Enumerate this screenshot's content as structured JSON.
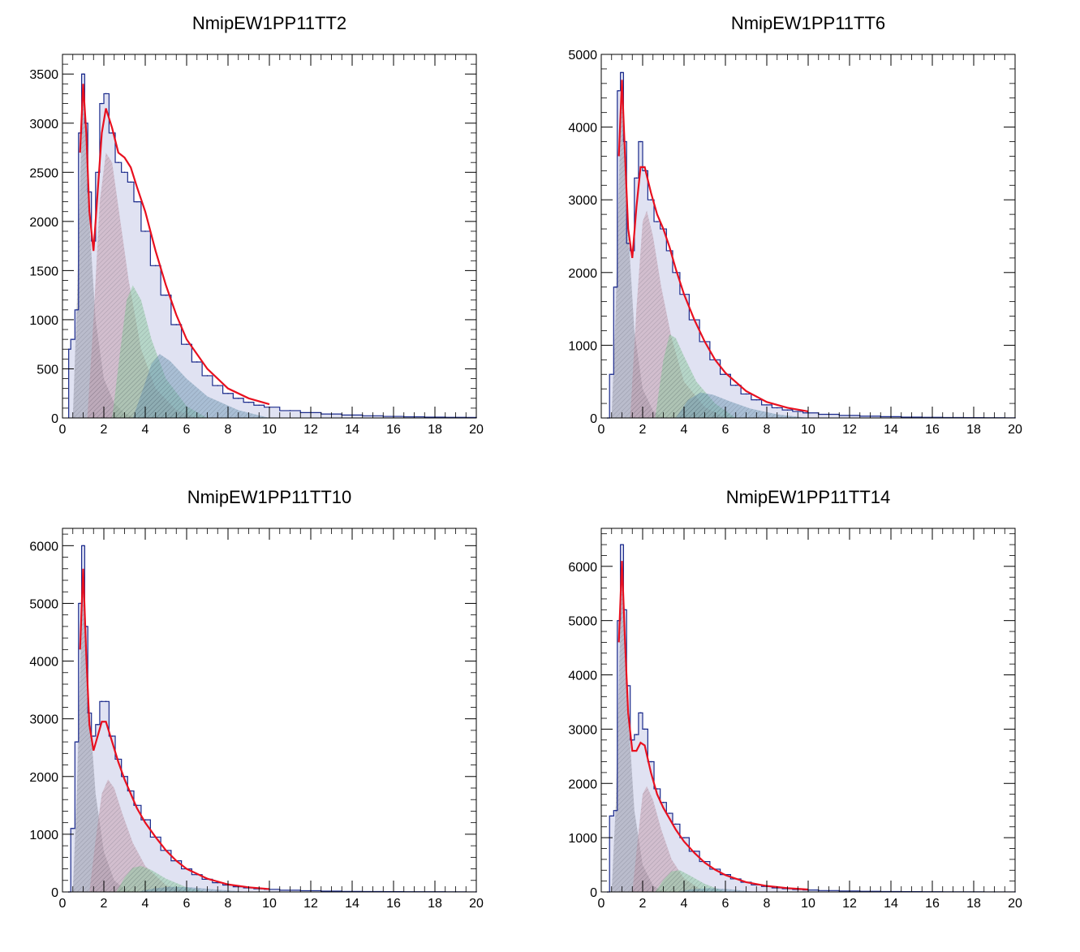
{
  "chart_data": [
    {
      "type": "histogram",
      "title": "NmipEW1PP11TT2",
      "xlabel": "",
      "ylabel": "",
      "xlim": [
        0,
        20
      ],
      "ylim": [
        0,
        3700
      ],
      "xticks": [
        "0",
        "2",
        "4",
        "6",
        "8",
        "10",
        "12",
        "14",
        "16",
        "18",
        "20"
      ],
      "yticks": [
        0,
        500,
        1000,
        1500,
        2000,
        2500,
        3000,
        3500
      ],
      "ytick_labels": [
        "0",
        "500",
        "1000",
        "1500",
        "2000",
        "2500",
        "3000",
        "3500"
      ],
      "histogram": {
        "x": [
          0.3,
          0.5,
          0.7,
          0.85,
          1.0,
          1.15,
          1.3,
          1.5,
          1.7,
          1.9,
          2.1,
          2.4,
          2.7,
          3.0,
          3.3,
          3.6,
          4.0,
          4.5,
          5.0,
          5.5,
          6.0,
          6.5,
          7.0,
          7.5,
          8.0,
          8.5,
          9.0,
          9.5,
          10.0,
          11.0,
          12.0,
          13.0,
          14.0,
          15.0,
          16.0,
          17.0,
          18.0,
          19.0,
          20.0
        ],
        "y": [
          700,
          800,
          1100,
          2900,
          3500,
          3000,
          2300,
          1800,
          2500,
          3200,
          3300,
          2900,
          2600,
          2500,
          2400,
          2200,
          1900,
          1550,
          1250,
          950,
          750,
          570,
          430,
          330,
          250,
          200,
          160,
          130,
          110,
          75,
          55,
          40,
          30,
          22,
          16,
          12,
          8,
          6,
          5
        ]
      },
      "fit": {
        "x": [
          0.85,
          1.0,
          1.15,
          1.3,
          1.5,
          1.7,
          1.9,
          2.1,
          2.4,
          2.7,
          3.0,
          3.3,
          3.6,
          4.0,
          4.5,
          5.0,
          5.5,
          6.0,
          7.0,
          8.0,
          9.0,
          10.0
        ],
        "y": [
          2700,
          3400,
          2900,
          2100,
          1700,
          2300,
          2900,
          3150,
          2950,
          2700,
          2650,
          2550,
          2350,
          2100,
          1700,
          1350,
          1050,
          800,
          500,
          300,
          200,
          140
        ]
      },
      "components": [
        {
          "color": "#9a9a9a",
          "x": [
            0.5,
            0.7,
            0.9,
            1.0,
            1.1,
            1.3,
            1.6,
            2.0,
            2.5,
            3.0,
            3.5
          ],
          "y": [
            0,
            1200,
            2800,
            3350,
            3000,
            2000,
            1000,
            400,
            150,
            50,
            0
          ]
        },
        {
          "color": "#d9a0a0",
          "x": [
            1.2,
            1.5,
            1.8,
            2.1,
            2.4,
            2.8,
            3.2,
            3.8,
            4.5,
            5.5,
            6.5
          ],
          "y": [
            0,
            1000,
            2200,
            2700,
            2600,
            2000,
            1400,
            700,
            300,
            80,
            0
          ]
        },
        {
          "color": "#8fe08f",
          "x": [
            2.4,
            2.8,
            3.1,
            3.4,
            3.8,
            4.3,
            5.0,
            6.0,
            7.0
          ],
          "y": [
            0,
            700,
            1200,
            1350,
            1200,
            800,
            400,
            120,
            0
          ]
        },
        {
          "color": "#6b9fb0",
          "x": [
            3.4,
            3.9,
            4.3,
            4.7,
            5.2,
            6.0,
            7.0,
            8.5,
            10.0
          ],
          "y": [
            0,
            300,
            550,
            650,
            580,
            400,
            220,
            80,
            0
          ]
        }
      ]
    },
    {
      "type": "histogram",
      "title": "NmipEW1PP11TT6",
      "xlabel": "",
      "ylabel": "",
      "xlim": [
        0,
        20
      ],
      "ylim": [
        0,
        5000
      ],
      "xticks": [
        "0",
        "2",
        "4",
        "6",
        "8",
        "10",
        "12",
        "14",
        "16",
        "18",
        "20"
      ],
      "yticks": [
        0,
        1000,
        2000,
        3000,
        4000,
        5000
      ],
      "ytick_labels": [
        "0",
        "1000",
        "2000",
        "3000",
        "4000",
        "5000"
      ],
      "histogram": {
        "x": [
          0.3,
          0.5,
          0.7,
          0.85,
          1.0,
          1.15,
          1.3,
          1.5,
          1.7,
          1.9,
          2.1,
          2.4,
          2.7,
          3.0,
          3.3,
          3.6,
          4.0,
          4.5,
          5.0,
          5.5,
          6.0,
          6.5,
          7.0,
          7.5,
          8.0,
          8.5,
          9.0,
          9.5,
          10.0,
          11.0,
          12.0,
          13.0,
          14.0,
          15.0,
          16.0,
          17.0,
          18.0,
          19.0,
          20.0
        ],
        "y": [
          0,
          600,
          1800,
          4500,
          4750,
          3800,
          2400,
          2300,
          3300,
          3800,
          3400,
          3000,
          2700,
          2600,
          2300,
          2000,
          1700,
          1350,
          1050,
          800,
          600,
          450,
          330,
          250,
          180,
          140,
          110,
          90,
          70,
          50,
          35,
          25,
          18,
          12,
          9,
          6,
          4,
          3,
          2
        ]
      },
      "fit": {
        "x": [
          0.85,
          1.0,
          1.15,
          1.3,
          1.5,
          1.7,
          1.9,
          2.1,
          2.4,
          2.7,
          3.0,
          3.3,
          3.6,
          4.0,
          4.5,
          5.0,
          5.5,
          6.0,
          7.0,
          8.0,
          9.0,
          10.0
        ],
        "y": [
          3600,
          4650,
          3600,
          2600,
          2200,
          2900,
          3450,
          3450,
          3100,
          2800,
          2600,
          2350,
          2050,
          1700,
          1350,
          1050,
          800,
          620,
          370,
          220,
          140,
          90
        ]
      },
      "components": [
        {
          "color": "#9a9a9a",
          "x": [
            0.5,
            0.7,
            0.9,
            1.0,
            1.1,
            1.3,
            1.6,
            2.0,
            2.5,
            3.0
          ],
          "y": [
            0,
            1500,
            3800,
            4500,
            4000,
            2600,
            1200,
            400,
            100,
            0
          ]
        },
        {
          "color": "#d9a0a0",
          "x": [
            1.4,
            1.7,
            2.0,
            2.2,
            2.5,
            2.9,
            3.4,
            4.0,
            5.0,
            6.0
          ],
          "y": [
            0,
            1500,
            2700,
            2850,
            2500,
            1800,
            1100,
            500,
            150,
            0
          ]
        },
        {
          "color": "#8fe08f",
          "x": [
            2.6,
            3.0,
            3.3,
            3.6,
            4.0,
            4.6,
            5.5,
            6.5
          ],
          "y": [
            0,
            800,
            1150,
            1100,
            850,
            500,
            200,
            0
          ]
        },
        {
          "color": "#6b9fb0",
          "x": [
            3.6,
            4.2,
            4.8,
            5.4,
            6.2,
            7.2,
            8.5,
            10.0
          ],
          "y": [
            0,
            250,
            350,
            320,
            230,
            130,
            50,
            0
          ]
        }
      ]
    },
    {
      "type": "histogram",
      "title": "NmipEW1PP11TT10",
      "xlabel": "",
      "ylabel": "",
      "xlim": [
        0,
        20
      ],
      "ylim": [
        0,
        6300
      ],
      "xticks": [
        "0",
        "2",
        "4",
        "6",
        "8",
        "10",
        "12",
        "14",
        "16",
        "18",
        "20"
      ],
      "yticks": [
        0,
        1000,
        2000,
        3000,
        4000,
        5000,
        6000
      ],
      "ytick_labels": [
        "0",
        "1000",
        "2000",
        "3000",
        "4000",
        "5000",
        "6000"
      ],
      "histogram": {
        "x": [
          0.3,
          0.5,
          0.7,
          0.85,
          1.0,
          1.15,
          1.3,
          1.5,
          1.7,
          1.9,
          2.1,
          2.4,
          2.7,
          3.0,
          3.3,
          3.6,
          4.0,
          4.5,
          5.0,
          5.5,
          6.0,
          6.5,
          7.0,
          7.5,
          8.0,
          8.5,
          9.0,
          9.5,
          10.0,
          11.0,
          12.0,
          13.0,
          14.0,
          15.0,
          16.0,
          17.0,
          18.0,
          19.0,
          20.0
        ],
        "y": [
          0,
          1100,
          2600,
          5000,
          6000,
          4600,
          3100,
          2700,
          2900,
          3300,
          3300,
          2700,
          2300,
          2000,
          1750,
          1500,
          1250,
          950,
          720,
          540,
          400,
          300,
          220,
          160,
          120,
          90,
          70,
          55,
          45,
          30,
          22,
          15,
          10,
          7,
          5,
          4,
          3,
          2,
          1
        ]
      },
      "fit": {
        "x": [
          0.85,
          1.0,
          1.15,
          1.3,
          1.5,
          1.7,
          1.9,
          2.1,
          2.4,
          2.7,
          3.0,
          3.3,
          3.6,
          4.0,
          4.5,
          5.0,
          5.5,
          6.0,
          7.0,
          8.0,
          9.0,
          10.0
        ],
        "y": [
          4200,
          5600,
          4100,
          2900,
          2450,
          2700,
          2950,
          2950,
          2600,
          2250,
          1950,
          1700,
          1450,
          1200,
          950,
          720,
          540,
          400,
          230,
          130,
          80,
          50
        ]
      },
      "components": [
        {
          "color": "#9a9a9a",
          "x": [
            0.5,
            0.7,
            0.9,
            1.0,
            1.1,
            1.3,
            1.6,
            2.0,
            2.5,
            3.0,
            3.5
          ],
          "y": [
            0,
            1800,
            4500,
            5300,
            4700,
            3200,
            1700,
            700,
            200,
            50,
            0
          ]
        },
        {
          "color": "#d9a0a0",
          "x": [
            1.3,
            1.6,
            1.9,
            2.2,
            2.5,
            2.9,
            3.4,
            4.0,
            5.0,
            6.0
          ],
          "y": [
            0,
            900,
            1700,
            1950,
            1800,
            1350,
            850,
            450,
            120,
            0
          ]
        },
        {
          "color": "#8fe08f",
          "x": [
            2.6,
            3.0,
            3.4,
            3.8,
            4.3,
            5.0,
            6.0,
            7.0
          ],
          "y": [
            0,
            250,
            420,
            450,
            380,
            230,
            80,
            0
          ]
        },
        {
          "color": "#6b9fb0",
          "x": [
            3.6,
            4.4,
            5.2,
            6.2,
            7.5,
            9.0
          ],
          "y": [
            0,
            60,
            90,
            80,
            40,
            0
          ]
        }
      ]
    },
    {
      "type": "histogram",
      "title": "NmipEW1PP11TT14",
      "xlabel": "",
      "ylabel": "",
      "xlim": [
        0,
        20
      ],
      "ylim": [
        0,
        6700
      ],
      "xticks": [
        "0",
        "2",
        "4",
        "6",
        "8",
        "10",
        "12",
        "14",
        "16",
        "18",
        "20"
      ],
      "yticks": [
        0,
        1000,
        2000,
        3000,
        4000,
        5000,
        6000
      ],
      "ytick_labels": [
        "0",
        "1000",
        "2000",
        "3000",
        "4000",
        "5000",
        "6000"
      ],
      "histogram": {
        "x": [
          0.3,
          0.5,
          0.7,
          0.85,
          1.0,
          1.15,
          1.3,
          1.5,
          1.7,
          1.9,
          2.1,
          2.4,
          2.7,
          3.0,
          3.3,
          3.6,
          4.0,
          4.5,
          5.0,
          5.5,
          6.0,
          6.5,
          7.0,
          7.5,
          8.0,
          8.5,
          9.0,
          9.5,
          10.0,
          11.0,
          12.0,
          13.0,
          14.0,
          15.0,
          16.0,
          17.0,
          18.0,
          19.0,
          20.0
        ],
        "y": [
          0,
          1400,
          1500,
          5000,
          6400,
          5200,
          3800,
          2800,
          2900,
          3300,
          3000,
          2400,
          1900,
          1650,
          1450,
          1250,
          1000,
          750,
          560,
          420,
          320,
          240,
          180,
          130,
          100,
          75,
          60,
          45,
          35,
          25,
          18,
          12,
          8,
          6,
          4,
          3,
          2,
          1,
          1
        ]
      },
      "fit": {
        "x": [
          0.85,
          1.0,
          1.15,
          1.3,
          1.5,
          1.7,
          1.9,
          2.1,
          2.4,
          2.7,
          3.0,
          3.3,
          3.6,
          4.0,
          4.5,
          5.0,
          5.5,
          6.0,
          7.0,
          8.0,
          9.0,
          10.0
        ],
        "y": [
          4600,
          6100,
          4600,
          3300,
          2600,
          2600,
          2750,
          2700,
          2200,
          1800,
          1550,
          1350,
          1150,
          930,
          720,
          540,
          410,
          310,
          180,
          110,
          70,
          45
        ]
      },
      "components": [
        {
          "color": "#9a9a9a",
          "x": [
            0.5,
            0.7,
            0.9,
            1.0,
            1.1,
            1.3,
            1.6,
            2.0,
            2.5,
            3.0
          ],
          "y": [
            0,
            1600,
            4700,
            5700,
            5000,
            3300,
            1500,
            500,
            120,
            0
          ]
        },
        {
          "color": "#d9a0a0",
          "x": [
            1.5,
            1.8,
            2.0,
            2.2,
            2.5,
            2.9,
            3.4,
            4.0,
            5.0
          ],
          "y": [
            0,
            1100,
            1800,
            1950,
            1700,
            1150,
            600,
            250,
            0
          ]
        },
        {
          "color": "#8fe08f",
          "x": [
            2.6,
            3.0,
            3.4,
            3.8,
            4.3,
            5.0,
            6.0
          ],
          "y": [
            0,
            220,
            380,
            400,
            300,
            150,
            0
          ]
        },
        {
          "color": "#6b9fb0",
          "x": [
            3.6,
            4.4,
            5.2,
            6.2,
            7.5
          ],
          "y": [
            0,
            50,
            70,
            50,
            0
          ]
        }
      ]
    }
  ]
}
